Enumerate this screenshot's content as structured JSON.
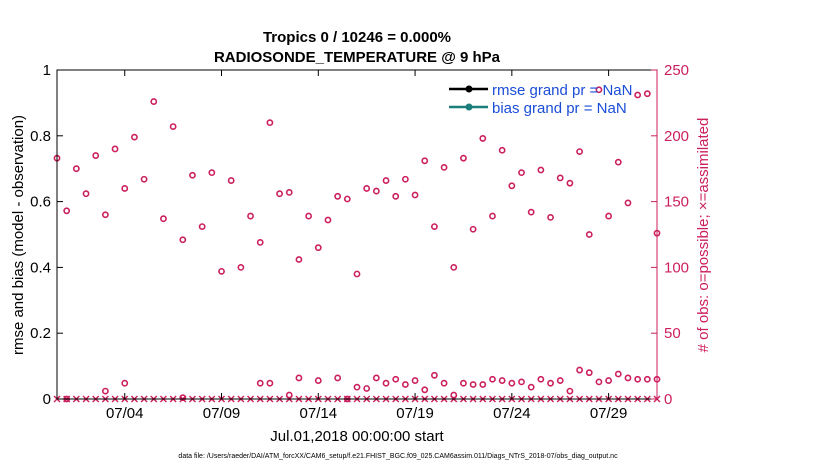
{
  "chart_data": {
    "type": "scatter",
    "title": "Tropics 0 / 10246 = 0.000%",
    "subtitle": "RADIOSONDE_TEMPERATURE @ 9 hPa",
    "xlabel": "Jul.01,2018 00:00:00 start",
    "ylabel": "rmse and bias (model - observation)",
    "y2label": "# of obs: o=possible; ×=assimilated",
    "footnote": "data file: /Users/raeder/DAI/ATM_forcXX/CAM6_setup/f.e21.FHIST_BGC.f09_025.CAM6assim.011/Diags_NTrS_2018-07/obs_diag_output.nc",
    "xlim": [
      0.5,
      31.5
    ],
    "ylim": [
      0,
      1
    ],
    "y2lim": [
      0,
      250
    ],
    "xticks": [
      4,
      9,
      14,
      19,
      24,
      29
    ],
    "xtick_labels": [
      "07/04",
      "07/09",
      "07/14",
      "07/19",
      "07/24",
      "07/29"
    ],
    "yticks": [
      0,
      0.2,
      0.4,
      0.6,
      0.8,
      1
    ],
    "ytick_labels": [
      "0",
      "0.2",
      "0.4",
      "0.6",
      "0.8",
      "1"
    ],
    "y2ticks": [
      0,
      50,
      100,
      150,
      200,
      250
    ],
    "y2tick_labels": [
      "0",
      "50",
      "100",
      "150",
      "200",
      "250"
    ],
    "legend": [
      {
        "label": "rmse grand pr = NaN",
        "color": "#000000"
      },
      {
        "label": "bias grand pr = NaN",
        "color": "#1a7f7a"
      }
    ],
    "legend_position": "top-right",
    "colors": {
      "obs": "#cc1f5e",
      "axis": "#000000",
      "y2axis": "#cc1f5e"
    },
    "possible_high": {
      "x": [
        0.5,
        1.0,
        1.5,
        2.0,
        2.5,
        3.0,
        3.5,
        4.0,
        4.5,
        5.0,
        5.5,
        6.0,
        6.5,
        7.0,
        7.5,
        8.0,
        8.5,
        9.0,
        9.5,
        10.0,
        10.5,
        11.0,
        11.5,
        12.0,
        12.5,
        13.0,
        13.5,
        14.0,
        14.5,
        15.0,
        15.5,
        16.0,
        16.5,
        17.0,
        17.5,
        18.0,
        18.5,
        19.0,
        19.5,
        20.0,
        20.5,
        21.0,
        21.5,
        22.0,
        22.5,
        23.0,
        23.5,
        24.0,
        24.5,
        25.0,
        25.5,
        26.0,
        26.5,
        27.0,
        27.5,
        28.0,
        28.5,
        29.0,
        29.5,
        30.0,
        30.5,
        31.0,
        31.5
      ],
      "y": [
        183,
        143,
        175,
        156,
        185,
        140,
        190,
        160,
        199,
        167,
        226,
        137,
        207,
        121,
        170,
        131,
        172,
        97,
        166,
        100,
        139,
        119,
        210,
        156,
        157,
        106,
        139,
        115,
        136,
        154,
        152,
        95,
        160,
        158,
        166,
        154,
        167,
        155,
        181,
        131,
        176,
        100,
        183,
        129,
        198,
        139,
        189,
        162,
        172,
        142,
        174,
        138,
        168,
        164,
        188,
        125,
        235,
        139,
        180,
        149,
        231,
        232,
        126
      ]
    },
    "possible_low": {
      "x": [
        1.0,
        3.0,
        4.0,
        7.0,
        11.0,
        11.5,
        12.5,
        13.0,
        14.0,
        15.0,
        15.5,
        16.0,
        16.5,
        17.0,
        17.5,
        18.0,
        18.5,
        19.0,
        19.5,
        20.0,
        20.5,
        21.0,
        21.5,
        22.0,
        22.5,
        23.0,
        23.5,
        24.0,
        24.5,
        25.0,
        25.5,
        26.0,
        26.5,
        27.0,
        27.5,
        28.0,
        28.5,
        29.0,
        29.5,
        30.0,
        30.5,
        31.0,
        31.5
      ],
      "y": [
        0,
        6,
        12,
        1,
        12,
        12,
        3,
        16,
        14,
        16,
        0,
        9,
        8,
        16,
        12,
        15,
        11,
        14,
        7,
        18,
        12,
        3,
        12,
        11,
        11,
        15,
        14,
        12,
        13,
        9,
        15,
        12,
        14,
        6,
        22,
        20,
        13,
        14,
        19,
        16,
        15,
        15,
        15
      ]
    },
    "assimilated": {
      "x": [
        0.5,
        1.0,
        1.5,
        2.0,
        2.5,
        3.0,
        3.5,
        4.0,
        4.5,
        5.0,
        5.5,
        6.0,
        6.5,
        7.0,
        7.5,
        8.0,
        8.5,
        9.0,
        9.5,
        10.0,
        10.5,
        11.0,
        11.5,
        12.0,
        12.5,
        13.0,
        13.5,
        14.0,
        14.5,
        15.0,
        15.5,
        16.0,
        16.5,
        17.0,
        17.5,
        18.0,
        18.5,
        19.0,
        19.5,
        20.0,
        20.5,
        21.0,
        21.5,
        22.0,
        22.5,
        23.0,
        23.5,
        24.0,
        24.5,
        25.0,
        25.5,
        26.0,
        26.5,
        27.0,
        27.5,
        28.0,
        28.5,
        29.0,
        29.5,
        30.0,
        30.5,
        31.0,
        31.5
      ],
      "y": [
        0,
        0,
        0,
        0,
        0,
        0,
        0,
        0,
        0,
        0,
        0,
        0,
        0,
        0,
        0,
        0,
        0,
        0,
        0,
        0,
        0,
        0,
        0,
        0,
        0,
        0,
        0,
        0,
        0,
        0,
        0,
        0,
        0,
        0,
        0,
        0,
        0,
        0,
        0,
        0,
        0,
        0,
        0,
        0,
        0,
        0,
        0,
        0,
        0,
        0,
        0,
        0,
        0,
        0,
        0,
        0,
        0,
        0,
        0,
        0,
        0,
        0,
        0
      ]
    }
  }
}
